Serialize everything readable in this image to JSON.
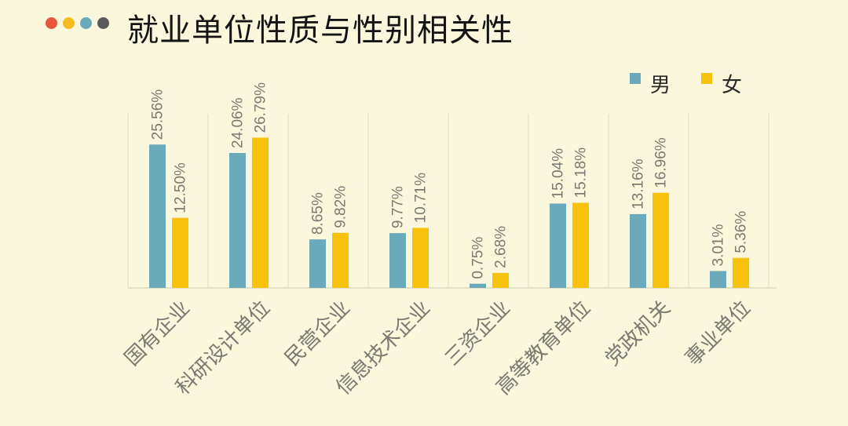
{
  "header": {
    "title": "就业单位性质与性别相关性",
    "dot_colors": [
      "#e8573c",
      "#f5bc1f",
      "#6aaabb",
      "#5a5a5a"
    ]
  },
  "colors": {
    "male": "#6aaabb",
    "female": "#f8c10b",
    "gridline": "#dcd8bd",
    "text": "#7a7a72"
  },
  "chart_data": {
    "type": "bar",
    "title": "就业单位性质与性别相关性",
    "categories": [
      "国有企业",
      "科研设计单位",
      "民营企业",
      "信息技术企业",
      "三资企业",
      "高等教育单位",
      "党政机关",
      "事业单位"
    ],
    "series": [
      {
        "name": "男",
        "values": [
          25.56,
          24.06,
          8.65,
          9.77,
          0.75,
          15.04,
          13.16,
          3.01
        ],
        "labels": [
          "25.56%",
          "24.06%",
          "8.65%",
          "9.77%",
          "0.75%",
          "15.04%",
          "13.16%",
          "3.01%"
        ]
      },
      {
        "name": "女",
        "values": [
          12.5,
          26.79,
          9.82,
          10.71,
          2.68,
          15.18,
          16.96,
          5.36
        ],
        "labels": [
          "12.50%",
          "26.79%",
          "9.82%",
          "10.71%",
          "2.68%",
          "15.18%",
          "16.96%",
          "5.36%"
        ]
      }
    ],
    "legend_position": "top-right",
    "grid": false,
    "value_unit": "%"
  }
}
